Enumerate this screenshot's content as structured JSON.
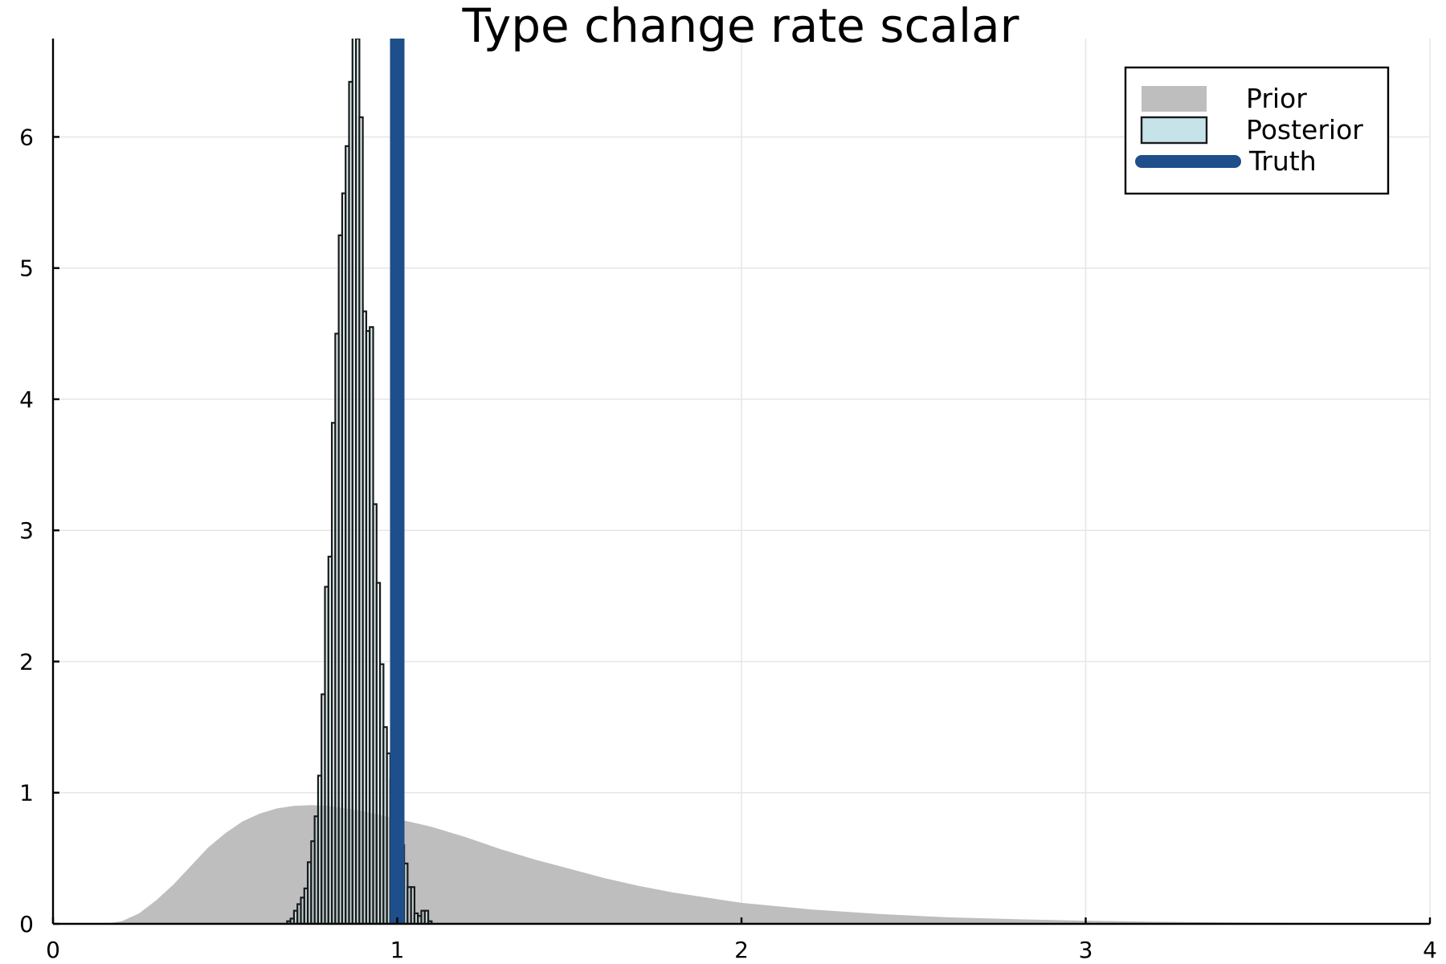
{
  "chart_data": {
    "type": "histogram",
    "title": "Type change rate scalar",
    "xlabel": "",
    "ylabel": "",
    "xlim": [
      0,
      4
    ],
    "ylim": [
      0,
      6.75
    ],
    "x_ticks": [
      0,
      1,
      2,
      3,
      4
    ],
    "y_ticks": [
      0,
      1,
      2,
      3,
      4,
      5,
      6
    ],
    "grid": true,
    "legend_position": "top-right",
    "colors": {
      "prior": "#bebebe",
      "posterior_fill": "#c6e3ea",
      "posterior_edge": "#1a1a1a",
      "truth": "#1e4f8a"
    },
    "series": [
      {
        "name": "Prior",
        "kind": "density_area",
        "x": [
          0.0,
          0.15,
          0.2,
          0.25,
          0.3,
          0.35,
          0.4,
          0.45,
          0.5,
          0.55,
          0.6,
          0.65,
          0.7,
          0.75,
          0.8,
          0.85,
          0.9,
          0.95,
          1.0,
          1.05,
          1.1,
          1.2,
          1.3,
          1.4,
          1.5,
          1.6,
          1.7,
          1.8,
          1.9,
          2.0,
          2.2,
          2.4,
          2.6,
          2.8,
          3.0,
          3.2,
          3.4,
          3.6,
          3.8,
          4.0
        ],
        "y": [
          0.0,
          0.0,
          0.02,
          0.08,
          0.18,
          0.3,
          0.44,
          0.58,
          0.69,
          0.78,
          0.84,
          0.88,
          0.9,
          0.905,
          0.9,
          0.88,
          0.86,
          0.83,
          0.8,
          0.77,
          0.74,
          0.66,
          0.57,
          0.49,
          0.42,
          0.35,
          0.29,
          0.24,
          0.2,
          0.16,
          0.11,
          0.075,
          0.05,
          0.035,
          0.024,
          0.016,
          0.011,
          0.007,
          0.005,
          0.003
        ]
      },
      {
        "name": "Posterior",
        "kind": "histogram",
        "bin_width": 0.01,
        "bin_starts": [
          0.68,
          0.69,
          0.7,
          0.71,
          0.72,
          0.73,
          0.74,
          0.75,
          0.76,
          0.77,
          0.78,
          0.79,
          0.8,
          0.81,
          0.82,
          0.83,
          0.84,
          0.85,
          0.86,
          0.87,
          0.88,
          0.89,
          0.9,
          0.91,
          0.92,
          0.93,
          0.94,
          0.95,
          0.96,
          0.97,
          0.98,
          0.99,
          1.0,
          1.01,
          1.02,
          1.03,
          1.04,
          1.05,
          1.06,
          1.07,
          1.08,
          1.09
        ],
        "density": [
          0.02,
          0.04,
          0.1,
          0.15,
          0.2,
          0.27,
          0.47,
          0.63,
          0.82,
          1.13,
          1.75,
          2.57,
          2.8,
          3.82,
          4.5,
          5.25,
          5.57,
          5.93,
          6.42,
          6.98,
          6.75,
          6.15,
          4.67,
          4.52,
          4.55,
          3.2,
          2.6,
          1.98,
          1.5,
          1.3,
          1.1,
          0.9,
          0.75,
          0.6,
          0.46,
          0.28,
          0.28,
          0.08,
          0.06,
          0.1,
          0.1,
          0.02
        ]
      },
      {
        "name": "Truth",
        "kind": "vline",
        "x": 1.0
      }
    ]
  }
}
